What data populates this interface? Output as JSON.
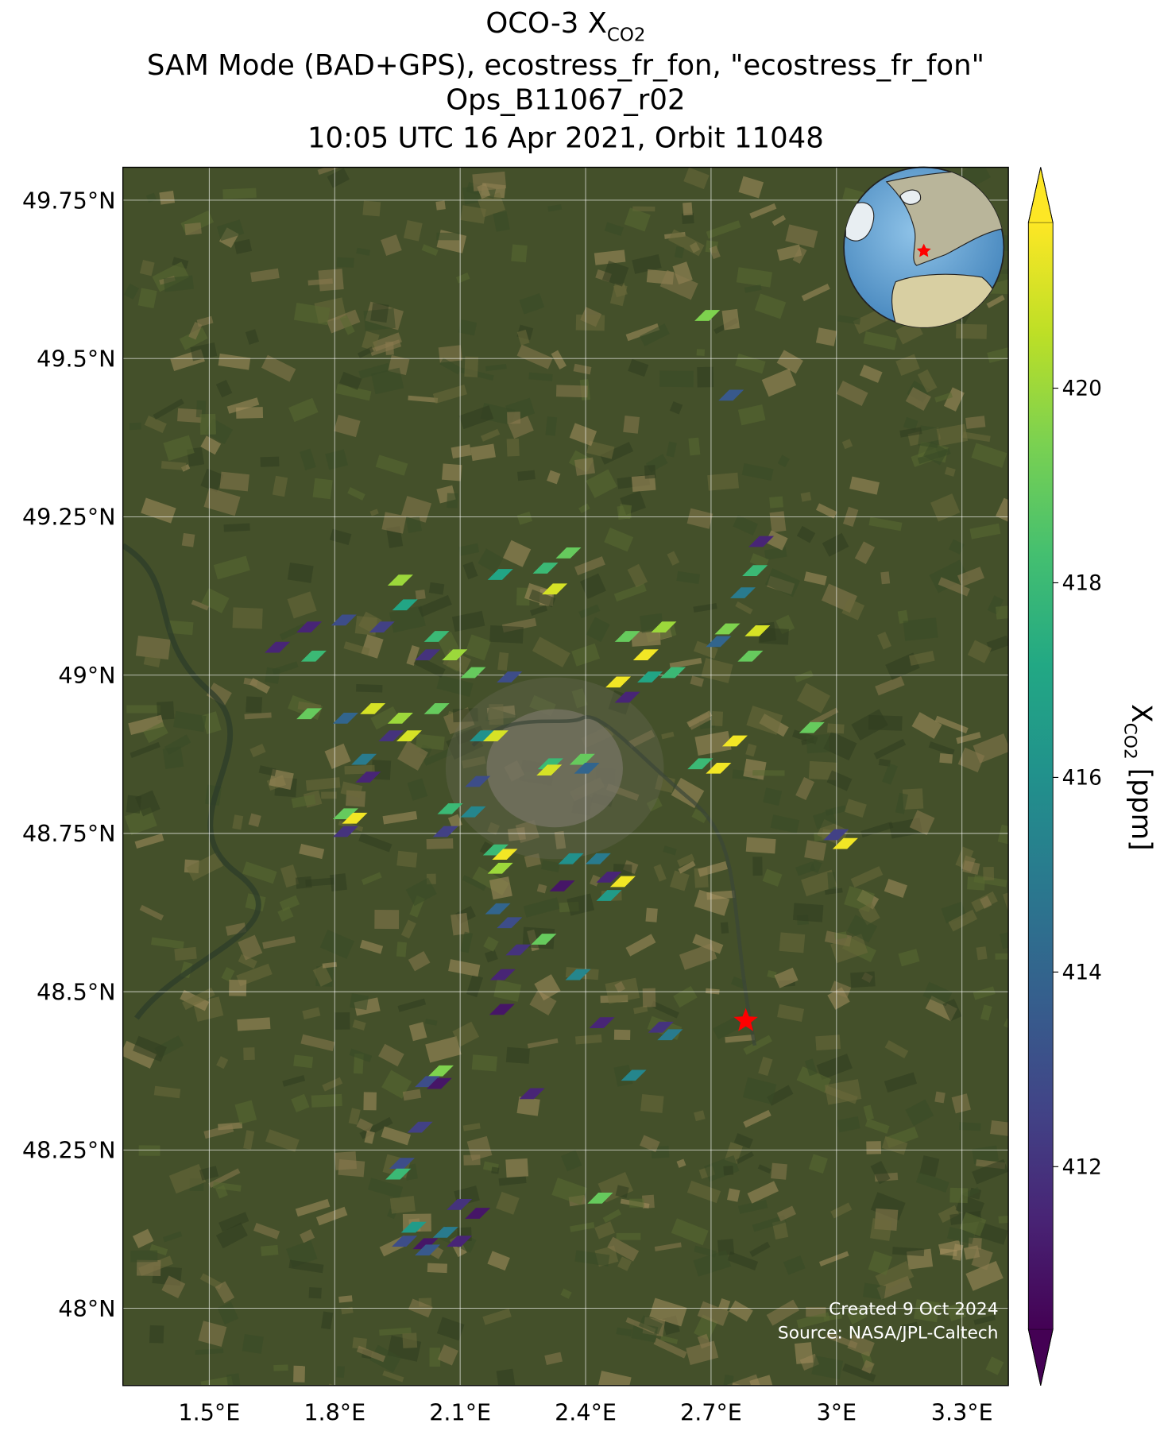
{
  "chart_data": {
    "type": "map",
    "title": {
      "line1": {
        "main": "OCO-3 X",
        "subscript": "CO2"
      },
      "line2": "SAM Mode (BAD+GPS), ecostress_fr_fon, \"ecostress_fr_fon\"",
      "line3": "Ops_B11067_r02",
      "line4": "10:05 UTC 16 Apr 2021, Orbit 11048"
    },
    "xlim": [
      1.2935,
      3.411
    ],
    "ylim": [
      47.878,
      49.802
    ],
    "xticks": [
      {
        "value": 1.5,
        "label": "1.5°E"
      },
      {
        "value": 1.8,
        "label": "1.8°E"
      },
      {
        "value": 2.1,
        "label": "2.1°E"
      },
      {
        "value": 2.4,
        "label": "2.4°E"
      },
      {
        "value": 2.7,
        "label": "2.7°E"
      },
      {
        "value": 3.0,
        "label": "3°E"
      },
      {
        "value": 3.3,
        "label": "3.3°E"
      }
    ],
    "yticks": [
      {
        "value": 48,
        "label": "48°N"
      },
      {
        "value": 48.25,
        "label": "48.25°N"
      },
      {
        "value": 48.5,
        "label": "48.5°N"
      },
      {
        "value": 48.75,
        "label": "48.75°N"
      },
      {
        "value": 49,
        "label": "49°N"
      },
      {
        "value": 49.25,
        "label": "49.25°N"
      },
      {
        "value": 49.5,
        "label": "49.5°N"
      },
      {
        "value": 49.75,
        "label": "49.75°N"
      }
    ],
    "grid": true,
    "colormap": "viridis",
    "x": [
      2.691,
      2.748,
      2.82,
      2.805,
      2.776,
      2.359,
      2.304,
      2.196,
      2.326,
      1.957,
      1.968,
      1.822,
      1.739,
      1.663,
      1.75,
      1.913,
      2.044,
      2.087,
      2.022,
      2.131,
      2.218,
      2.5,
      2.544,
      2.587,
      2.478,
      2.554,
      2.5,
      2.609,
      2.739,
      2.811,
      2.718,
      2.794,
      1.739,
      1.891,
      1.826,
      1.957,
      1.978,
      2.044,
      1.935,
      2.153,
      2.185,
      1.87,
      1.88,
      2.142,
      2.316,
      2.392,
      2.403,
      2.313,
      2.674,
      2.718,
      2.757,
      2.941,
      1.826,
      1.848,
      1.826,
      2.076,
      2.131,
      2.065,
      2.185,
      2.196,
      2.207,
      2.365,
      2.43,
      2.344,
      2.456,
      2.489,
      2.456,
      2.999,
      3.021,
      2.19,
      2.218,
      2.3,
      2.239,
      2.202,
      2.382,
      2.2,
      2.439,
      2.58,
      2.602,
      2.515,
      2.272,
      2.054,
      2.022,
      2.05,
      2.004,
      1.961,
      1.952,
      2.435,
      2.098,
      2.142,
      1.989,
      1.967,
      2.017,
      2.065,
      2.098,
      2.022
    ],
    "y": [
      49.568,
      49.442,
      49.211,
      49.165,
      49.13,
      49.193,
      49.169,
      49.159,
      49.136,
      49.15,
      49.111,
      49.087,
      49.076,
      49.044,
      49.03,
      49.076,
      49.061,
      49.032,
      49.032,
      49.004,
      48.997,
      49.061,
      49.032,
      49.076,
      48.989,
      48.997,
      48.965,
      49.004,
      49.073,
      49.07,
      49.053,
      49.03,
      48.939,
      48.947,
      48.932,
      48.932,
      48.904,
      48.947,
      48.904,
      48.904,
      48.904,
      48.867,
      48.839,
      48.832,
      48.86,
      48.867,
      48.853,
      48.85,
      48.86,
      48.853,
      48.896,
      48.917,
      48.781,
      48.774,
      48.753,
      48.789,
      48.784,
      48.753,
      48.724,
      48.695,
      48.717,
      48.71,
      48.71,
      48.667,
      48.652,
      48.674,
      48.681,
      48.748,
      48.734,
      48.631,
      48.609,
      48.583,
      48.566,
      48.527,
      48.527,
      48.472,
      48.451,
      48.444,
      48.432,
      48.368,
      48.339,
      48.375,
      48.358,
      48.355,
      48.286,
      48.229,
      48.212,
      48.174,
      48.164,
      48.15,
      48.128,
      48.106,
      48.102,
      48.12,
      48.106,
      48.092
    ],
    "values": [
      419.5,
      413.5,
      411.5,
      418,
      415,
      419,
      418,
      417,
      421,
      420,
      417,
      413,
      411.5,
      411.5,
      418,
      412.5,
      418,
      420,
      412,
      419,
      413,
      419,
      421.5,
      420,
      421.5,
      417,
      411.5,
      418,
      419.5,
      421,
      414,
      419,
      419,
      421,
      414,
      420,
      421,
      419,
      412,
      416,
      421,
      415,
      411.5,
      413,
      418,
      419,
      414,
      421,
      418,
      421.5,
      421.5,
      419,
      419,
      421.5,
      412,
      418,
      415.5,
      412.5,
      418,
      420,
      421.5,
      416,
      415,
      411,
      416.5,
      421.5,
      411.5,
      412.5,
      421.5,
      414,
      413,
      419,
      412,
      411.5,
      415.5,
      411,
      411.5,
      412,
      415,
      415.5,
      411.5,
      419.5,
      413,
      411,
      412.5,
      413,
      418,
      419,
      412,
      411,
      416.5,
      413,
      411,
      415,
      411.5,
      413.5
    ],
    "target": {
      "lon": 2.783,
      "lat": 48.454,
      "color": "#ff0000"
    },
    "colorbar": {
      "label": {
        "symbol": "X",
        "subscript": "CO2",
        "unit": " [ppm]"
      },
      "clim": [
        410.33,
        421.7
      ],
      "ticks": [
        412,
        414,
        416,
        418,
        420
      ]
    },
    "credits": [
      "Created 9 Oct 2024",
      "Source: NASA/JPL-Caltech"
    ]
  }
}
